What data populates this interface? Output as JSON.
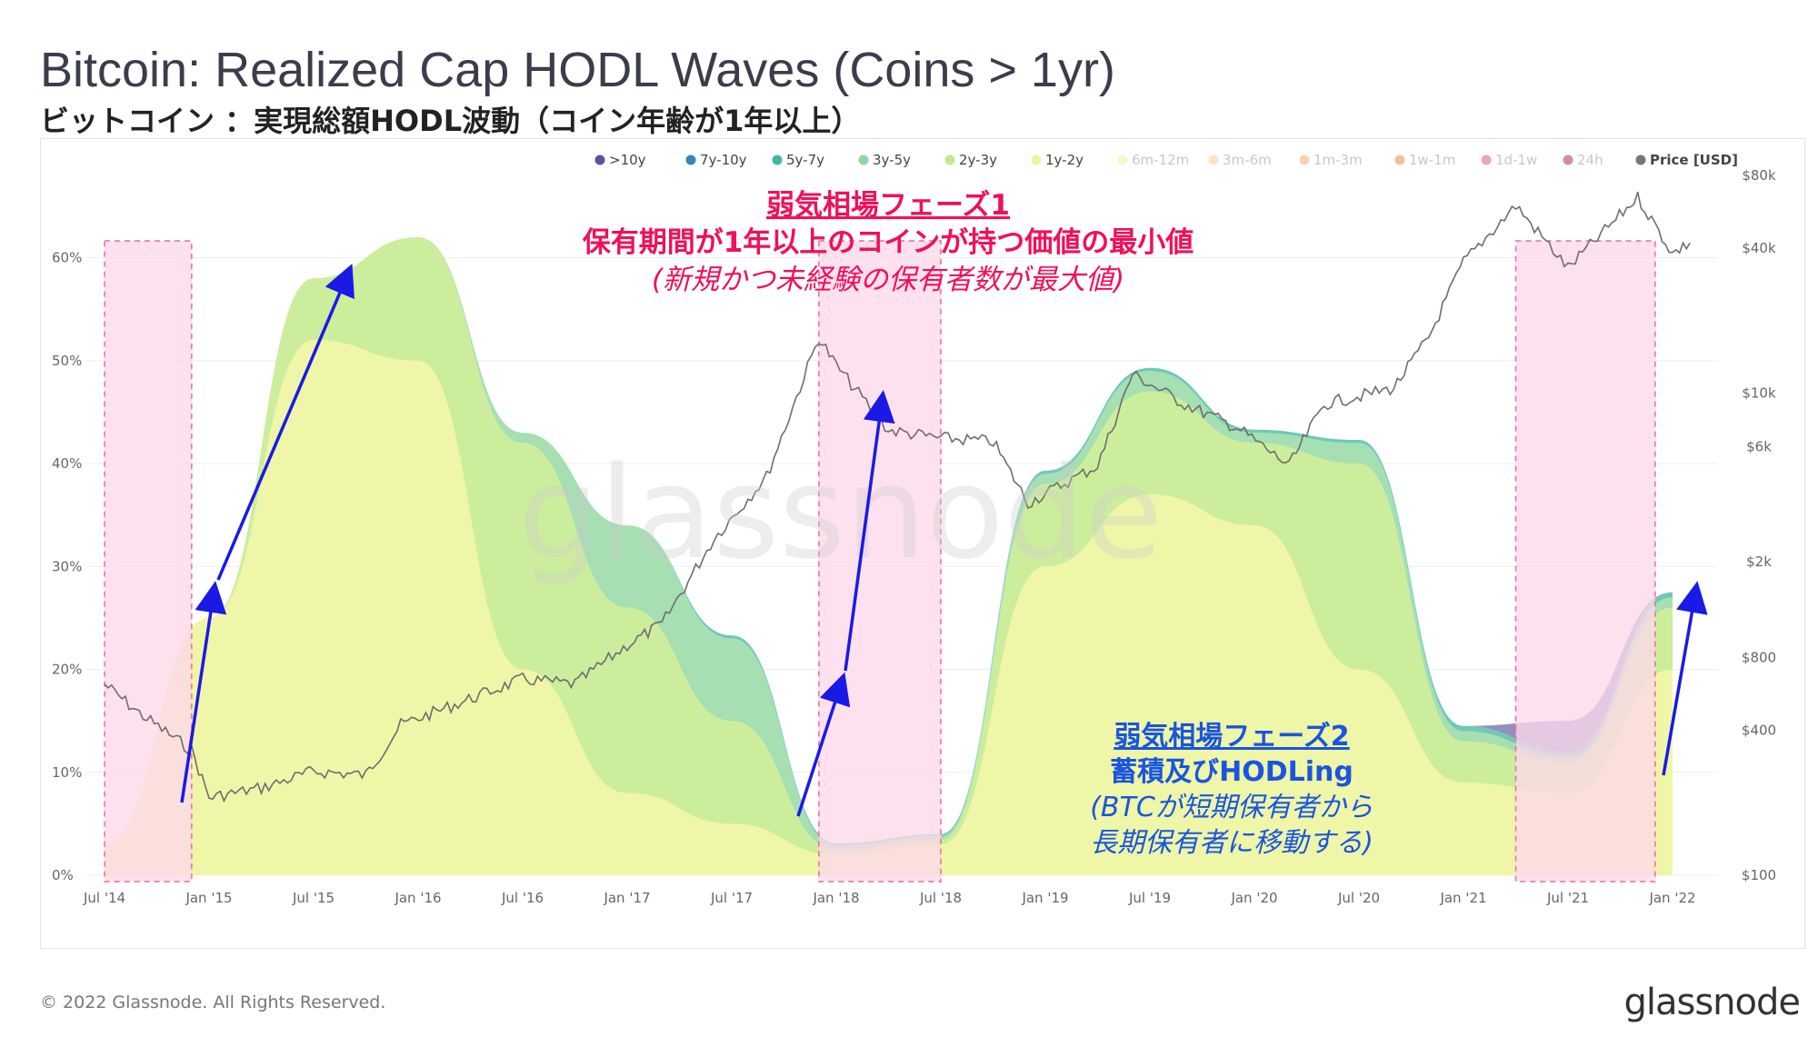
{
  "title": "Bitcoin: Realized Cap HODL Waves (Coins > 1yr)",
  "subtitle": "ビットコイン ：実現総額HODL波動（コイン年齢が1年以上）",
  "copyright": "© 2022 Glassnode. All Rights Reserved.",
  "brand": "glassnode",
  "watermark": "glassnode",
  "colors": {
    "phase_highlight": "#fdd9ea",
    "phase_border": "#f06a9a",
    "arrow": "#1a1ae6",
    "annotation1": "#f0105a",
    "annotation2": "#1a55e0",
    "price_line": "#6e6e6e"
  },
  "annotations": {
    "phase1": {
      "line1": "弱気相場フェーズ1",
      "line2": "保有期間が1年以上のコインが持つ価値の最小値",
      "line3": "(新規かつ未経験の保有者数が最大値)"
    },
    "phase2": {
      "line1": "弱気相場フェーズ2",
      "line2": "蓄積及びHODLing",
      "line3": "(BTCが短期保有者から",
      "line4": "長期保有者に移動する)"
    }
  },
  "chart_data": {
    "type": "area",
    "stacked": true,
    "x_ticks": [
      "Jul '14",
      "Jan '15",
      "Jul '15",
      "Jan '16",
      "Jul '16",
      "Jan '17",
      "Jul '17",
      "Jan '18",
      "Jul '18",
      "Jan '19",
      "Jul '19",
      "Jan '20",
      "Jul '20",
      "Jan '21",
      "Jul '21",
      "Jan '22"
    ],
    "y_left_ticks": [
      "0%",
      "10%",
      "20%",
      "30%",
      "40%",
      "50%",
      "60%"
    ],
    "y_left_range": [
      0,
      68
    ],
    "y_right_ticks": [
      "$100",
      "$400",
      "$800",
      "$2k",
      "$6k",
      "$10k",
      "$40k",
      "$80k"
    ],
    "y_right_values": [
      100,
      400,
      800,
      2000,
      6000,
      10000,
      40000,
      80000
    ],
    "y_right_scale": "log",
    "legend_position": "top-right",
    "legend": [
      {
        "label": ">10y",
        "color": "#5e4fa2",
        "faded": false
      },
      {
        "label": "7y-10y",
        "color": "#3288bd",
        "faded": false
      },
      {
        "label": "5y-7y",
        "color": "#3fb6a8",
        "faded": false
      },
      {
        "label": "3y-5y",
        "color": "#8fd6a0",
        "faded": false
      },
      {
        "label": "2y-3y",
        "color": "#c4e98a",
        "faded": false
      },
      {
        "label": "1y-2y",
        "color": "#eef5a0",
        "faded": false
      },
      {
        "label": "6m-12m",
        "color": "#fde68a",
        "faded": true
      },
      {
        "label": "3m-6m",
        "color": "#fdc47d",
        "faded": true
      },
      {
        "label": "1m-3m",
        "color": "#f99855",
        "faded": true
      },
      {
        "label": "1w-1m",
        "color": "#ee6a3d",
        "faded": true
      },
      {
        "label": "1d-1w",
        "color": "#d53e4f",
        "faded": true
      },
      {
        "label": "24h",
        "color": "#9e0142",
        "faded": true
      },
      {
        "label": "Price [USD]",
        "color": "#777777",
        "faded": false
      }
    ],
    "series": [
      {
        "name": "1y-2y",
        "color": "#eef5a0",
        "values": [
          3,
          25,
          52,
          50,
          20,
          8,
          5,
          2,
          3,
          30,
          37,
          34,
          20,
          9,
          8,
          20
        ]
      },
      {
        "name": "2y-3y",
        "color": "#c8eb94",
        "values": [
          0,
          0,
          6,
          12,
          22,
          18,
          10,
          0.5,
          0.5,
          8,
          10,
          8,
          20,
          4,
          3,
          6
        ]
      },
      {
        "name": "3y-5y",
        "color": "#9ddcab",
        "values": [
          0,
          0,
          0,
          0,
          1,
          8,
          8,
          0.4,
          0.3,
          1,
          2,
          1,
          2,
          1,
          0.5,
          1
        ]
      },
      {
        "name": "5y-7y",
        "color": "#62c4b2",
        "values": [
          0,
          0,
          0,
          0,
          0,
          0,
          0.3,
          0.2,
          0.2,
          0.3,
          0.3,
          0.3,
          0.3,
          0.5,
          0.5,
          0.5
        ]
      },
      {
        "name": ">10y",
        "color": "#8a86b8",
        "values": [
          0,
          0,
          0,
          0,
          0,
          0,
          0,
          0,
          0,
          0,
          0,
          0,
          0,
          0,
          3,
          0
        ]
      }
    ],
    "price": [
      {
        "x": "Jul '14",
        "y": 620
      },
      {
        "x": "Sep '14",
        "y": 470
      },
      {
        "x": "Dec '14",
        "y": 330
      },
      {
        "x": "Jan '15",
        "y": 210
      },
      {
        "x": "Apr '15",
        "y": 230
      },
      {
        "x": "Jul '15",
        "y": 270
      },
      {
        "x": "Oct '15",
        "y": 260
      },
      {
        "x": "Dec '15",
        "y": 420
      },
      {
        "x": "Jul '16",
        "y": 650
      },
      {
        "x": "Oct '16",
        "y": 620
      },
      {
        "x": "Jan '17",
        "y": 900
      },
      {
        "x": "Mar '17",
        "y": 1100
      },
      {
        "x": "Jun '17",
        "y": 2500
      },
      {
        "x": "Sep '17",
        "y": 4500
      },
      {
        "x": "Dec '17",
        "y": 17000
      },
      {
        "x": "Jan '18",
        "y": 13000
      },
      {
        "x": "Apr '18",
        "y": 7000
      },
      {
        "x": "Jul '18",
        "y": 6500
      },
      {
        "x": "Oct '18",
        "y": 6300
      },
      {
        "x": "Dec '18",
        "y": 3500
      },
      {
        "x": "Apr '19",
        "y": 5000
      },
      {
        "x": "Jun '19",
        "y": 12000
      },
      {
        "x": "Sep '19",
        "y": 9000
      },
      {
        "x": "Dec '19",
        "y": 7200
      },
      {
        "x": "Mar '20",
        "y": 5000
      },
      {
        "x": "May '20",
        "y": 9000
      },
      {
        "x": "Sep '20",
        "y": 10500
      },
      {
        "x": "Nov '20",
        "y": 17000
      },
      {
        "x": "Jan '21",
        "y": 35000
      },
      {
        "x": "Apr '21",
        "y": 60000
      },
      {
        "x": "Jul '21",
        "y": 33000
      },
      {
        "x": "Nov '21",
        "y": 65000
      },
      {
        "x": "Jan '22",
        "y": 38000
      },
      {
        "x": "Feb '22",
        "y": 42000
      }
    ],
    "highlight_periods": [
      {
        "from": "Jul '14",
        "to": "Dec '14"
      },
      {
        "from": "Dec '17",
        "to": "Jul '18"
      },
      {
        "from": "Apr '21",
        "to": "Dec '21"
      }
    ]
  }
}
